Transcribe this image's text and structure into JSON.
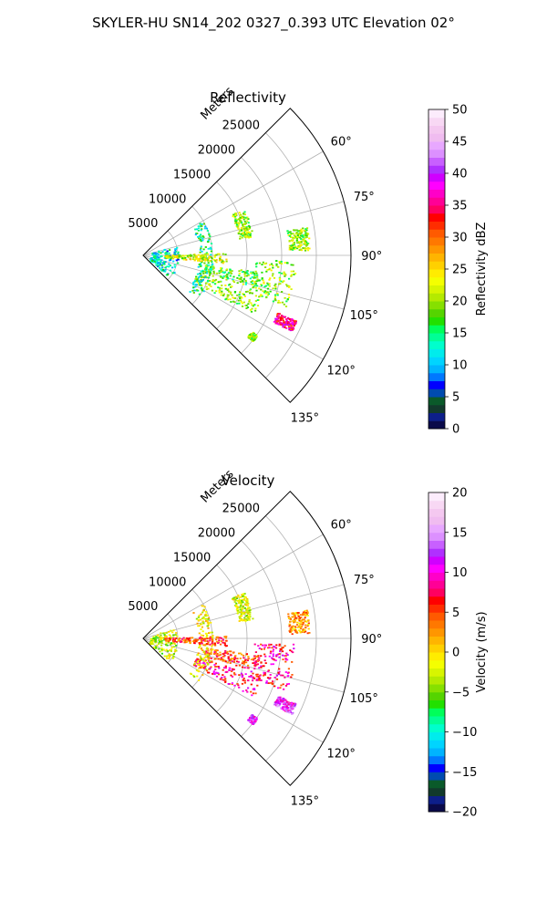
{
  "figure": {
    "title": "SKYLER-HU  SN14_202  0327_0.393 UTC Elevation 02°"
  },
  "chart_data": [
    {
      "type": "polar-sector",
      "title": "Reflectivity",
      "range_label": "Meters",
      "range_ticks": [
        5000,
        10000,
        15000,
        20000,
        25000
      ],
      "rlim": [
        0,
        30000
      ],
      "azimuth_ticks": [
        "60°",
        "75°",
        "90°",
        "105°",
        "120°",
        "135°"
      ],
      "azimuth_tick_values": [
        60,
        75,
        90,
        105,
        120,
        135
      ],
      "thetalim": [
        45,
        135
      ],
      "grid": true,
      "colorbar": {
        "label": "Reflectivity dBZ",
        "range": [
          0,
          50
        ],
        "ticks": [
          "0",
          "5",
          "10",
          "15",
          "20",
          "25",
          "30",
          "35",
          "40",
          "45",
          "50"
        ],
        "colors": [
          "#0a0a4a",
          "#0d1f8a",
          "#123a2c",
          "#0a5a2a",
          "#004bb0",
          "#0000ff",
          "#0078ff",
          "#00b4ff",
          "#00d4ff",
          "#00ecec",
          "#00ffcc",
          "#00ff96",
          "#00ff5a",
          "#22e000",
          "#55d400",
          "#86e000",
          "#b4ea00",
          "#d8f500",
          "#f4ff00",
          "#ffec00",
          "#ffd000",
          "#ffb400",
          "#ff9600",
          "#ff7800",
          "#ff5a00",
          "#ff2d00",
          "#ff0000",
          "#ff0060",
          "#ff0096",
          "#ff00c8",
          "#ff00ff",
          "#d000ff",
          "#b030ff",
          "#c860ff",
          "#dc90ff",
          "#e8a8ff",
          "#f0bcf0",
          "#f4c8f0",
          "#f8d8f4",
          "#fcecfc"
        ]
      },
      "palette_name": "reflectivity"
    },
    {
      "type": "polar-sector",
      "title": "Velocity",
      "range_label": "Meters",
      "range_ticks": [
        5000,
        10000,
        15000,
        20000,
        25000
      ],
      "rlim": [
        0,
        30000
      ],
      "azimuth_ticks": [
        "60°",
        "75°",
        "90°",
        "105°",
        "120°",
        "135°"
      ],
      "azimuth_tick_values": [
        60,
        75,
        90,
        105,
        120,
        135
      ],
      "thetalim": [
        45,
        135
      ],
      "grid": true,
      "colorbar": {
        "label": "Velocity (m/s)",
        "range": [
          -20,
          20
        ],
        "ticks": [
          "−20",
          "−15",
          "−10",
          "−5",
          "0",
          "5",
          "10",
          "15",
          "20"
        ],
        "colors": [
          "#0a0a4a",
          "#0d1f8a",
          "#123a2c",
          "#0a5a2a",
          "#004bb0",
          "#0000ff",
          "#0078ff",
          "#00b4ff",
          "#00d4ff",
          "#00ecec",
          "#00ffcc",
          "#00ff96",
          "#00ff5a",
          "#22e000",
          "#55d400",
          "#86e000",
          "#b4ea00",
          "#d8f500",
          "#f4ff00",
          "#ffec00",
          "#ffd000",
          "#ffb400",
          "#ff9600",
          "#ff7800",
          "#ff5a00",
          "#ff2d00",
          "#ff0000",
          "#ff0060",
          "#ff0096",
          "#ff00c8",
          "#ff00ff",
          "#d000ff",
          "#b030ff",
          "#c860ff",
          "#dc90ff",
          "#e8a8ff",
          "#f0bcf0",
          "#f4c8f0",
          "#f8d8f4",
          "#fcecfc"
        ]
      },
      "palette_name": "velocity"
    }
  ],
  "echo_features": [
    {
      "az": [
        65,
        80
      ],
      "r": [
        14000,
        16000
      ],
      "val": 20,
      "vel": -2
    },
    {
      "az": [
        80,
        88
      ],
      "r": [
        21000,
        24000
      ],
      "val": 20,
      "vel": 2
    },
    {
      "az": [
        92,
        110
      ],
      "r": [
        16000,
        22000
      ],
      "val": 20,
      "vel": 8
    },
    {
      "az": [
        98,
        106
      ],
      "r": [
        9000,
        17000
      ],
      "val": 18,
      "vel": 5
    },
    {
      "az": [
        108,
        118
      ],
      "r": [
        8000,
        18000
      ],
      "val": 20,
      "vel": 8
    },
    {
      "az": [
        113,
        117
      ],
      "r": [
        21000,
        24000
      ],
      "val": 35,
      "vel": 12
    },
    {
      "az": [
        125,
        128
      ],
      "r": [
        19000,
        20000
      ],
      "val": 20,
      "vel": 12
    },
    {
      "az": [
        60,
        128
      ],
      "r": [
        8000,
        10000
      ],
      "val": 14,
      "vel": -1
    },
    {
      "az": [
        70,
        130
      ],
      "r": [
        1000,
        5000
      ],
      "val": 12,
      "vel": -3
    },
    {
      "az": [
        88,
        95
      ],
      "r": [
        3000,
        12000
      ],
      "val": 22,
      "vel": 5
    }
  ]
}
